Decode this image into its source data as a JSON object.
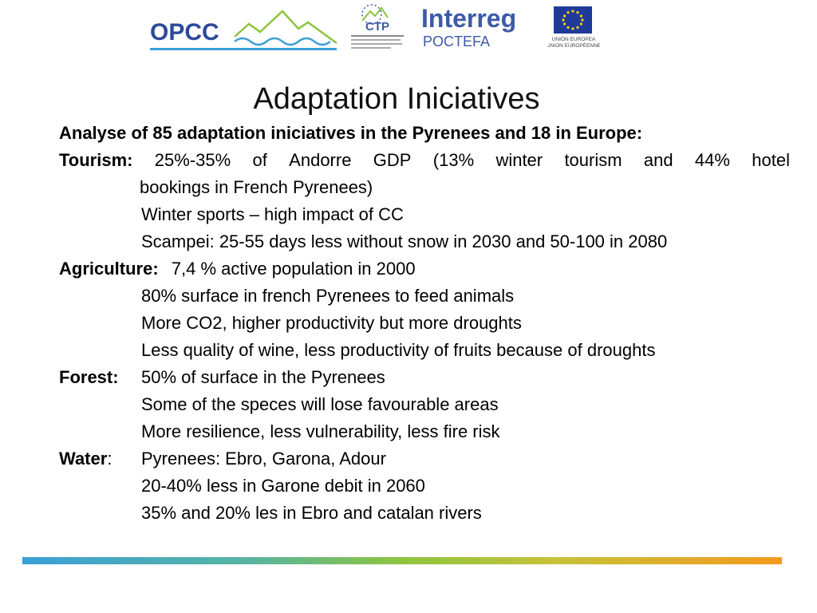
{
  "logos": {
    "opcc_text": "OPCC",
    "ctp_text": "CTP",
    "interreg_text": "Interreg",
    "poctefa_text": "POCTEFA",
    "eu_line1": "UNIÓN EUROPEA",
    "eu_line2": "UNION EUROPÉENNE"
  },
  "title": "Adaptation Iniciatives",
  "intro": "Analyse of 85 adaptation iniciatives in the Pyrenees and 18 in Europe:",
  "sections": {
    "tourism": {
      "label": "Tourism:",
      "line1": [
        "25%-35%",
        "of",
        "Andorre",
        "GDP",
        "(13%",
        "winter",
        "tourism",
        "and",
        "44%",
        "hotel"
      ],
      "line1_cont": "bookings in French Pyrenees)",
      "items": [
        "Winter sports – high impact of CC",
        "Scampei: 25-55 days less without snow in 2030 and 50-100 in 2080"
      ]
    },
    "agriculture": {
      "label": "Agriculture:",
      "first": "7,4 % active population in 2000",
      "items": [
        "80% surface in french Pyrenees to feed animals",
        "More CO2, higher productivity but more droughts",
        "Less quality of wine, less productivity of fruits because of droughts"
      ]
    },
    "forest": {
      "label": "Forest:",
      "first": "50%  of surface in the Pyrenees",
      "items": [
        "Some of the speces will lose favourable areas",
        "More resilience, less vulnerability, less fire risk"
      ]
    },
    "water": {
      "label": "Water",
      "colon": ":",
      "first": "Pyrenees: Ebro, Garona, Adour",
      "items": [
        "20-40% less in Garone debit in 2060",
        "35% and 20% les in Ebro and catalan rivers"
      ]
    }
  },
  "colors": {
    "opcc_blue": "#2b4a9a",
    "opcc_green": "#8dc43f",
    "interreg_blue": "#3d5aa8",
    "eu_blue": "#1f3b99",
    "eu_star": "#ffd200"
  }
}
